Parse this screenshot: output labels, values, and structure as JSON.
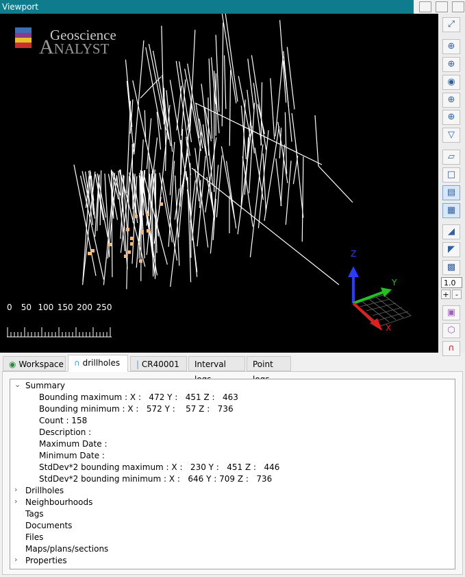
{
  "window": {
    "title": "Viewport"
  },
  "viewport": {
    "logo": {
      "line1": "Geoscience",
      "line2": "Analyst"
    },
    "scale_labels": [
      "0",
      "50",
      "100",
      "150",
      "200",
      "250"
    ],
    "axes": {
      "z": "Z",
      "y": "Y",
      "x": "X"
    }
  },
  "toolbar": {
    "zoom": "1.0",
    "plus": "+",
    "minus": "-"
  },
  "tabs": [
    "Workspace",
    "drillholes",
    "CR40001",
    "Interval logs",
    "Point logs"
  ],
  "tree": {
    "summary": {
      "label": "Summary",
      "expanded": true,
      "items": [
        "Bounding maximum : X :   472 Y :   451 Z :   463",
        "Bounding minimum : X :   572 Y :    57 Z :   736",
        "Count : 158",
        "Description :",
        "Maximum Date :",
        "Minimum Date :",
        "StdDev*2 bounding maximum : X :   230 Y :   451 Z :   446",
        "StdDev*2 bounding minimum : X :   646 Y : 709 Z :   736"
      ]
    },
    "nodes": [
      {
        "label": "Drillholes",
        "expandable": true
      },
      {
        "label": "Neighbourhoods",
        "expandable": true
      },
      {
        "label": "Tags",
        "expandable": false
      },
      {
        "label": "Documents",
        "expandable": false
      },
      {
        "label": "Files",
        "expandable": false
      },
      {
        "label": "Maps/plans/sections",
        "expandable": false
      },
      {
        "label": "Properties",
        "expandable": true
      }
    ]
  }
}
